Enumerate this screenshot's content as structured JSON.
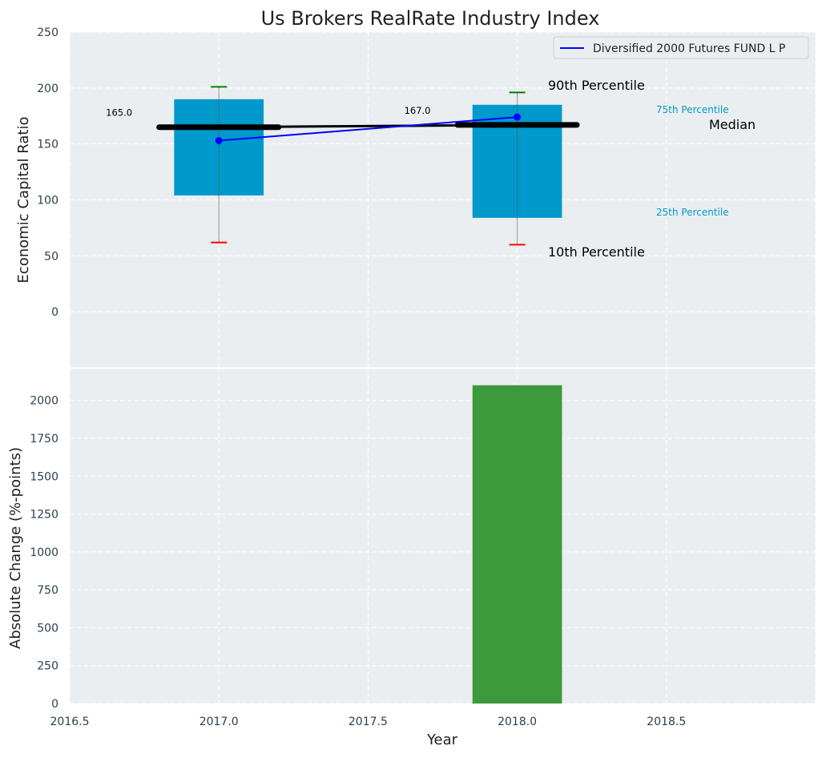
{
  "chart_data": [
    {
      "type": "bar",
      "title": "Us Brokers RealRate Industry Index",
      "xlabel": "",
      "ylabel": "Economic Capital Ratio",
      "xlim": [
        2016.5,
        2019.0
      ],
      "ylim": [
        -50,
        250
      ],
      "yticks": [
        0,
        50,
        100,
        150,
        200,
        250
      ],
      "grid": true,
      "legend": {
        "placement": "top-right",
        "entries": [
          "Diversified 2000 Futures FUND L P"
        ]
      },
      "boxes": [
        {
          "x": 2017,
          "p10": 62,
          "p25": 104,
          "median": 165,
          "p75": 190,
          "p90": 201,
          "median_label": "165.0"
        },
        {
          "x": 2018,
          "p10": 60,
          "p25": 84,
          "median": 167,
          "p75": 185,
          "p90": 196,
          "median_label": "167.0"
        }
      ],
      "series": [
        {
          "name": "Diversified 2000 Futures FUND L P",
          "x": [
            2017,
            2018
          ],
          "values": [
            153,
            174
          ],
          "color": "#0000ff"
        }
      ],
      "annotations": {
        "p90": "90th Percentile",
        "p75": "75th Percentile",
        "median": "Median",
        "p25": "25th Percentile",
        "p10": "10th Percentile"
      },
      "colors": {
        "box": "#0099cc",
        "upper_whisker": "#008000",
        "lower_whisker": "#ff0000",
        "median": "#000000",
        "background": "#eaeef0"
      }
    },
    {
      "type": "bar",
      "xlabel": "Year",
      "ylabel": "Absolute Change (%-points)",
      "xlim": [
        2016.5,
        2019.0
      ],
      "ylim": [
        0,
        2210
      ],
      "xticks": [
        2016.5,
        2017.0,
        2017.5,
        2018.0,
        2018.5
      ],
      "xtick_labels": [
        "2016.5",
        "2017.0",
        "2017.5",
        "2018.0",
        "2018.5"
      ],
      "yticks": [
        0,
        250,
        500,
        750,
        1000,
        1250,
        1500,
        1750,
        2000
      ],
      "grid": true,
      "categories": [
        2018
      ],
      "values": [
        2100
      ],
      "color": "#3c9a3c"
    }
  ]
}
